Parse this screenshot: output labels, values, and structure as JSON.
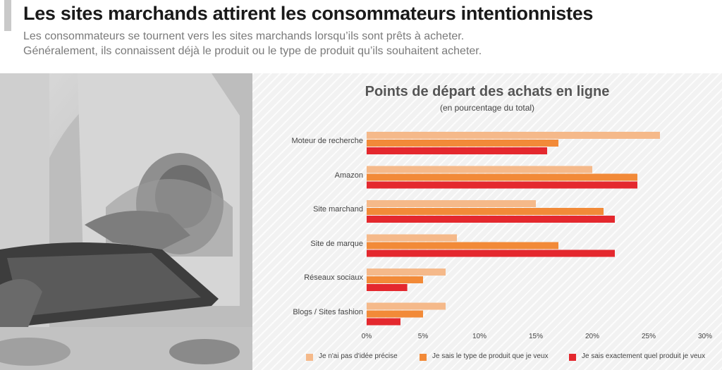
{
  "header": {
    "title": "Les sites marchands attirent les consommateurs intentionnistes",
    "subtitle_line1": "Les consommateurs se tournent vers les sites marchands lorsqu’ils sont prêts à acheter.",
    "subtitle_line2": "Généralement, ils connaissent déjà le produit ou le type de produit qu’ils souhaitent acheter."
  },
  "colors": {
    "series1": "#f5b98a",
    "series2": "#f28a38",
    "series3": "#e4282e"
  },
  "chart_data": {
    "type": "bar",
    "orientation": "horizontal",
    "title": "Points de départ des achats en ligne",
    "subtitle": "(en pourcentage du total)",
    "categories": [
      "Moteur de recherche",
      "Amazon",
      "Site marchand",
      "Site de marque",
      "Réseaux sociaux",
      "Blogs / Sites fashion"
    ],
    "series": [
      {
        "name": "Je n'ai pas d'idée précise",
        "values": [
          26,
          20,
          15,
          8,
          7,
          7
        ]
      },
      {
        "name": "Je sais le type de produit que je veux",
        "values": [
          17,
          24,
          21,
          17,
          5,
          5
        ]
      },
      {
        "name": "Je sais exactement quel produit je veux",
        "values": [
          16,
          24,
          22,
          22,
          3.6,
          3
        ]
      }
    ],
    "xlim": [
      0,
      30
    ],
    "ticks": [
      0,
      5,
      10,
      15,
      20,
      25,
      30
    ],
    "tick_labels": [
      "0%",
      "5%",
      "10%",
      "15%",
      "20%",
      "25%",
      "30%"
    ],
    "legend_position": "bottom"
  }
}
